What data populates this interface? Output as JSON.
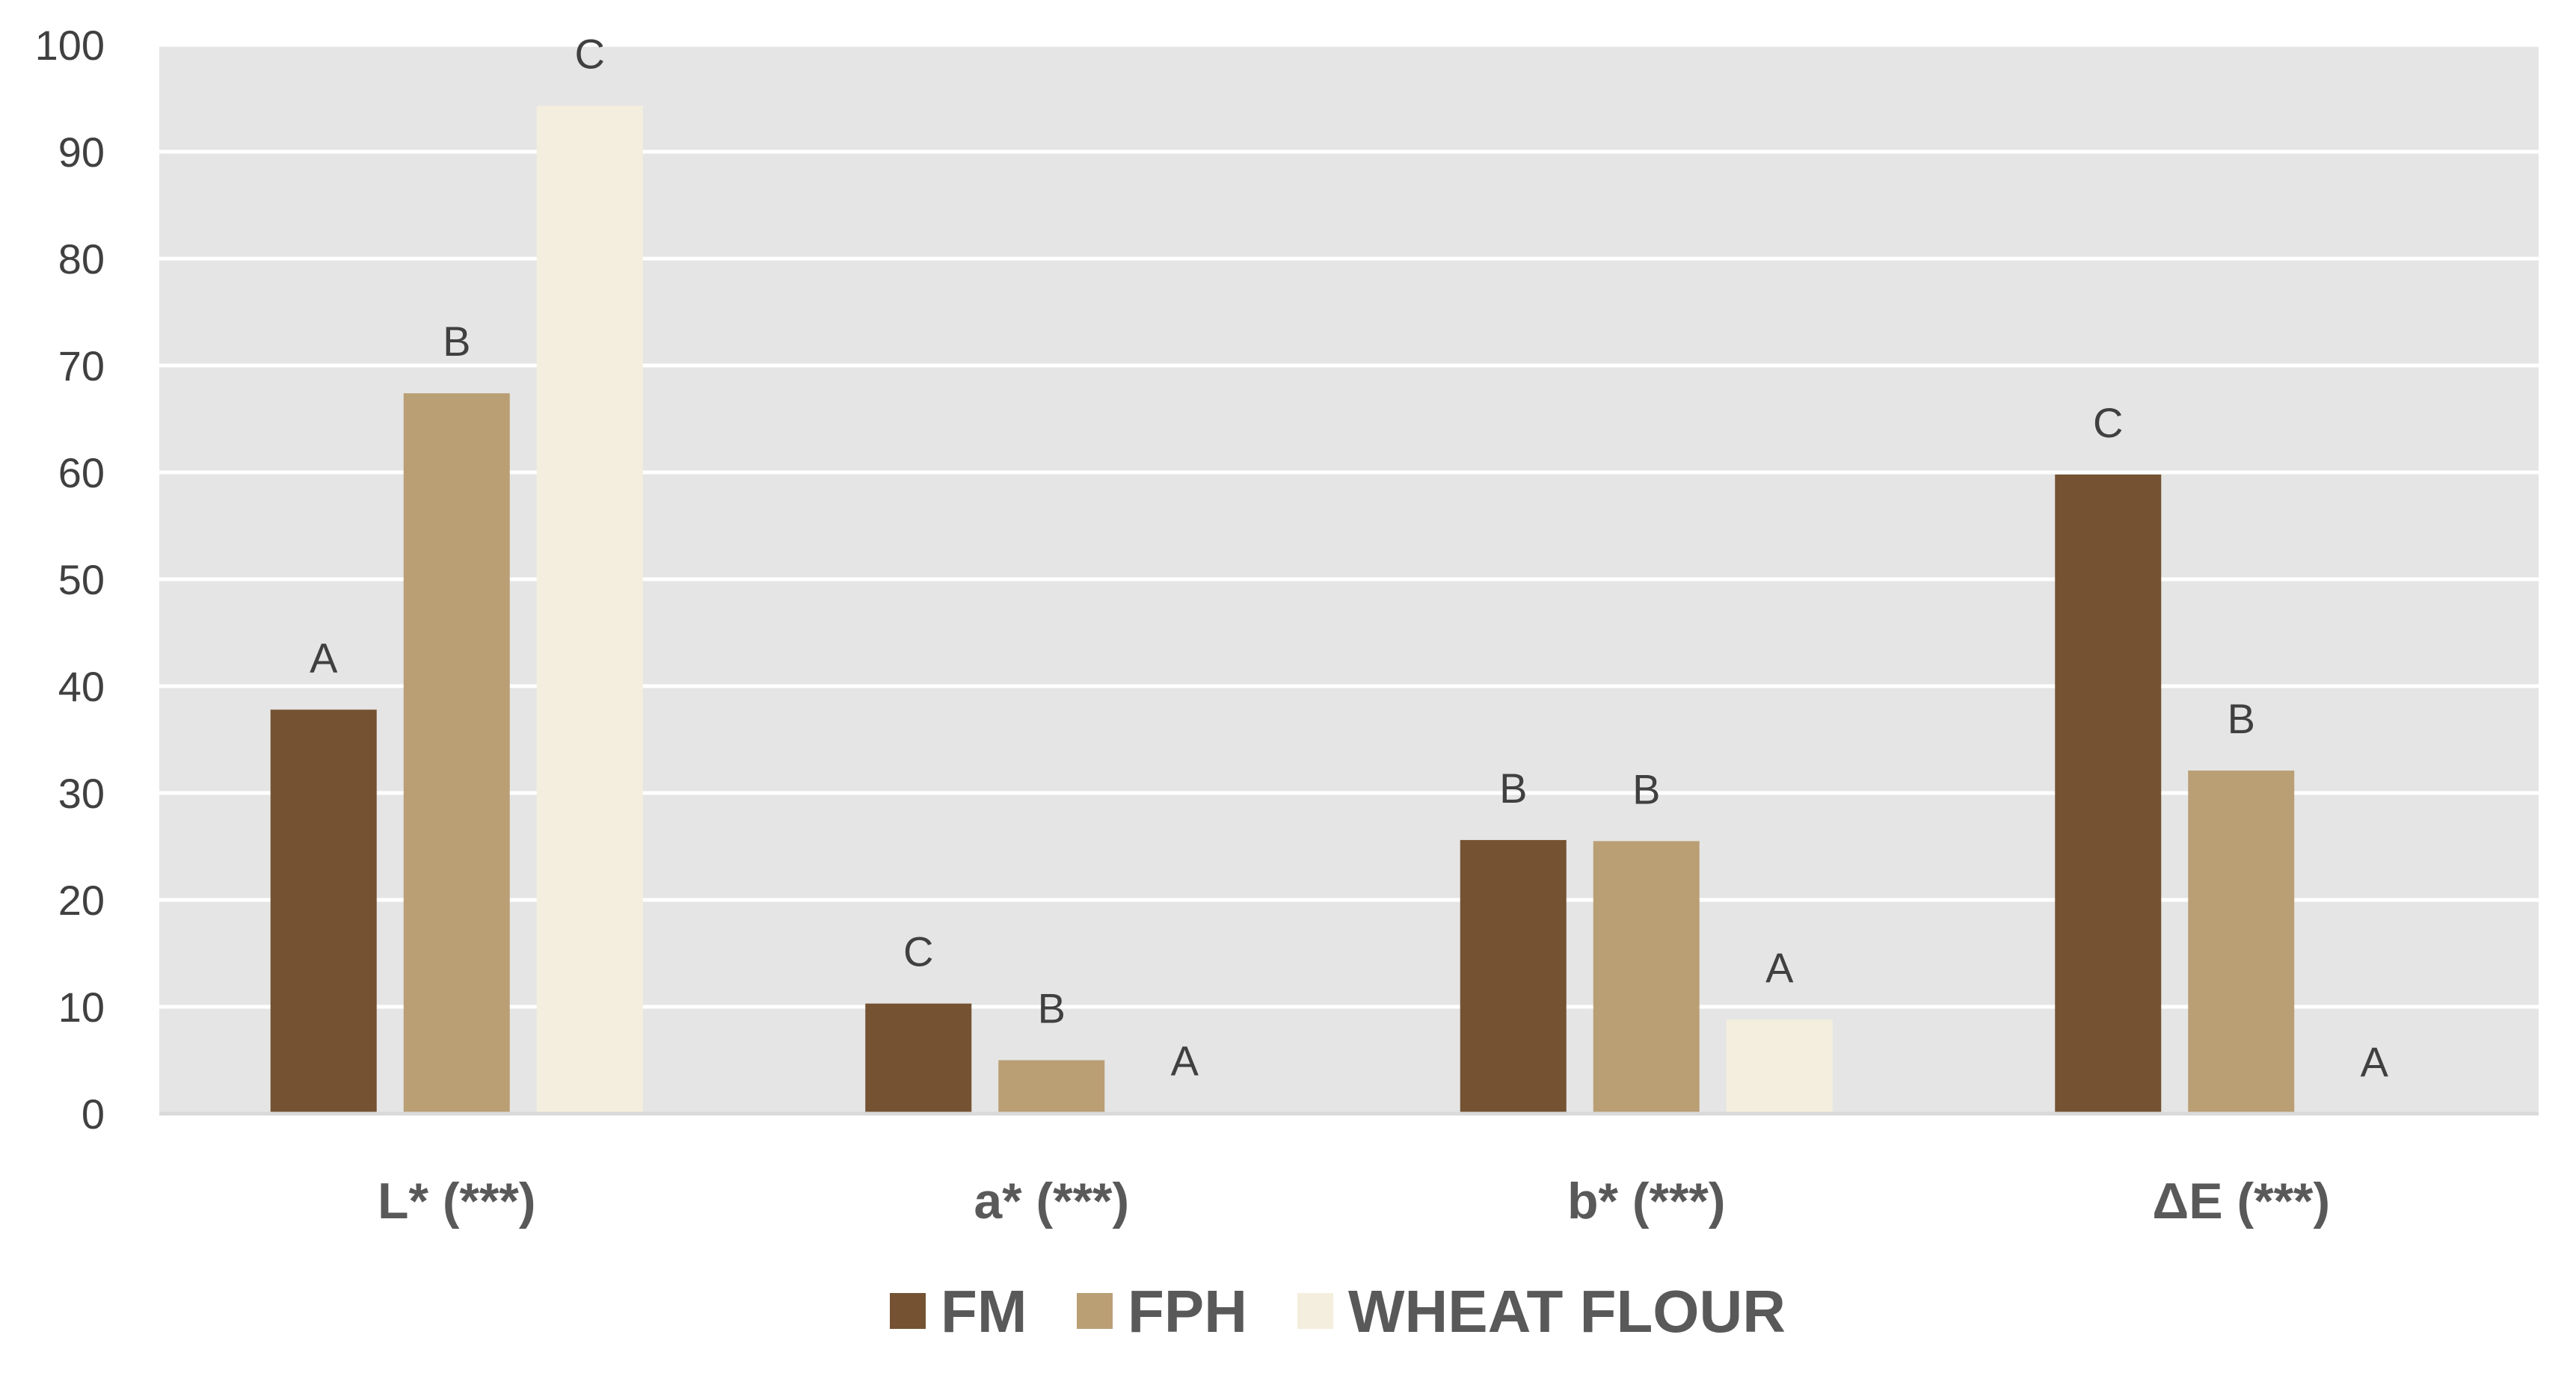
{
  "chart_data": {
    "type": "bar",
    "categories": [
      "L* (***)",
      "a* (***)",
      "b* (***)",
      "ΔE (***)"
    ],
    "series": [
      {
        "name": "FM",
        "color": "#745232",
        "values": [
          37.8,
          10.3,
          25.6,
          59.8
        ],
        "labels": [
          "A",
          "C",
          "B",
          "C"
        ]
      },
      {
        "name": "FPH",
        "color": "#BA9F75",
        "values": [
          67.4,
          5.0,
          25.5,
          32.1
        ],
        "labels": [
          "B",
          "B",
          "B",
          "B"
        ]
      },
      {
        "name": "WHEAT FLOUR",
        "color": "#F4EEDE",
        "values": [
          94.3,
          0.1,
          8.8,
          0
        ],
        "labels": [
          "C",
          "A",
          "A",
          "A"
        ]
      }
    ],
    "ylim": [
      0,
      100
    ],
    "yticks": [
      0,
      10,
      20,
      30,
      40,
      50,
      60,
      70,
      80,
      90,
      100
    ],
    "grid": true,
    "legend_position": "bottom",
    "plot_background": "#E5E5E5",
    "gridline_color": "#FFFFFF"
  }
}
